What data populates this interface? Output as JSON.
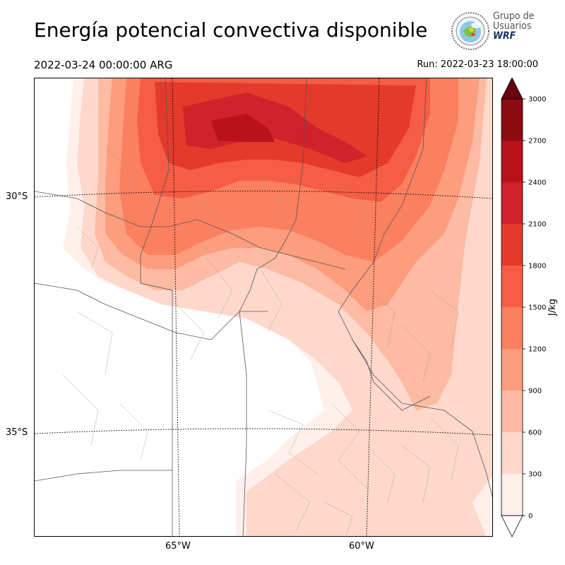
{
  "title": "Energía potencial convectiva disponible",
  "valid_time": "2022-03-24 00:00:00 ARG",
  "run_time": "Run: 2022-03-23 18:00:00",
  "logo": {
    "line1": "Grupo de",
    "line2": "Usuarios",
    "line3": "WRF"
  },
  "map": {
    "latitude_labels": [
      "30°S",
      "35°S"
    ],
    "longitude_labels": [
      "65°W",
      "60°W"
    ]
  },
  "colorbar": {
    "unit_label": "J/kg",
    "ticks": [
      "0",
      "300",
      "600",
      "900",
      "1200",
      "1500",
      "1800",
      "2100",
      "2400",
      "2700",
      "3000"
    ],
    "colors": [
      "#fff0eb",
      "#fed8cb",
      "#fcbba2",
      "#fc9d7e",
      "#fb8060",
      "#f65d45",
      "#e43a2b",
      "#d1212a",
      "#b71319",
      "#8b0b13",
      "#67000d"
    ]
  },
  "legend_colors": {
    "extend_low": "#ffffff",
    "extend_high": "#67000d"
  }
}
